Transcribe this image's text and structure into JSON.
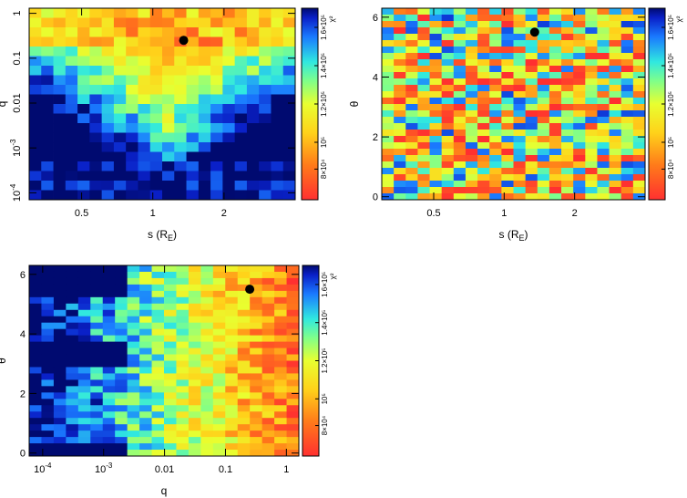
{
  "chart_data": [
    {
      "type": "heatmap",
      "name": "panel-s-q",
      "xlabel": "s (R",
      "xlabel_sub": "E",
      "xlabel_close": ")",
      "ylabel": "q",
      "xscale": "log",
      "yscale": "log",
      "xlim": [
        0.3,
        4.0
      ],
      "ylim": [
        7e-05,
        1.3
      ],
      "xticks": [
        {
          "v": 0.5,
          "label": "0.5"
        },
        {
          "v": 1,
          "label": "1"
        },
        {
          "v": 2,
          "label": "2"
        }
      ],
      "yticks": [
        {
          "v": 1,
          "label": "1"
        },
        {
          "v": 0.1,
          "label": "0.1"
        },
        {
          "v": 0.01,
          "label": "0.01"
        },
        {
          "v": 0.001,
          "label": "10",
          "sup": "-3"
        },
        {
          "v": 0.0001,
          "label": "10",
          "sup": "-4"
        }
      ],
      "best_fit": {
        "x": 1.35,
        "y": 0.25
      },
      "grid_cols": 22,
      "grid_rows": 20,
      "pattern": "funnel",
      "colorbar": {
        "label": "χ²",
        "ticks": [
          "8×10⁴",
          "10⁵",
          "1.2×10⁵",
          "1.4×10⁵",
          "1.6×10⁵"
        ]
      }
    },
    {
      "type": "heatmap",
      "name": "panel-s-theta",
      "xlabel": "s (R",
      "xlabel_sub": "E",
      "xlabel_close": ")",
      "ylabel": "θ",
      "xscale": "log",
      "yscale": "linear",
      "xlim": [
        0.3,
        4.0
      ],
      "ylim": [
        -0.1,
        6.3
      ],
      "xticks": [
        {
          "v": 0.5,
          "label": "0.5"
        },
        {
          "v": 1,
          "label": "1"
        },
        {
          "v": 2,
          "label": "2"
        }
      ],
      "yticks": [
        {
          "v": 0,
          "label": "0"
        },
        {
          "v": 2,
          "label": "2"
        },
        {
          "v": 4,
          "label": "4"
        },
        {
          "v": 6,
          "label": "6"
        }
      ],
      "best_fit": {
        "x": 1.35,
        "y": 5.5
      },
      "grid_cols": 22,
      "grid_rows": 30,
      "pattern": "noise",
      "colorbar": {
        "label": "χ²",
        "ticks": [
          "8×10⁴",
          "10⁵",
          "1.2×10⁵",
          "1.4×10⁵",
          "1.6×10⁵"
        ]
      }
    },
    {
      "type": "heatmap",
      "name": "panel-q-theta",
      "xlabel": "q",
      "ylabel": "θ",
      "xscale": "log",
      "yscale": "linear",
      "xlim": [
        6e-05,
        1.6
      ],
      "ylim": [
        -0.1,
        6.3
      ],
      "xticks": [
        {
          "v": 0.0001,
          "label": "10",
          "sup": "-4"
        },
        {
          "v": 0.001,
          "label": "10",
          "sup": "-3"
        },
        {
          "v": 0.01,
          "label": "0.01"
        },
        {
          "v": 0.1,
          "label": "0.1"
        },
        {
          "v": 1,
          "label": "1"
        }
      ],
      "yticks": [
        {
          "v": 0,
          "label": "0"
        },
        {
          "v": 2,
          "label": "2"
        },
        {
          "v": 4,
          "label": "4"
        },
        {
          "v": 6,
          "label": "6"
        }
      ],
      "best_fit": {
        "x": 0.25,
        "y": 5.5
      },
      "grid_cols": 22,
      "grid_rows": 30,
      "pattern": "gradient",
      "colorbar": {
        "label": "χ²",
        "ticks": [
          "8×10⁴",
          "10⁵",
          "1.2×10⁵",
          "1.4×10⁵",
          "1.6×10⁵"
        ]
      }
    }
  ]
}
